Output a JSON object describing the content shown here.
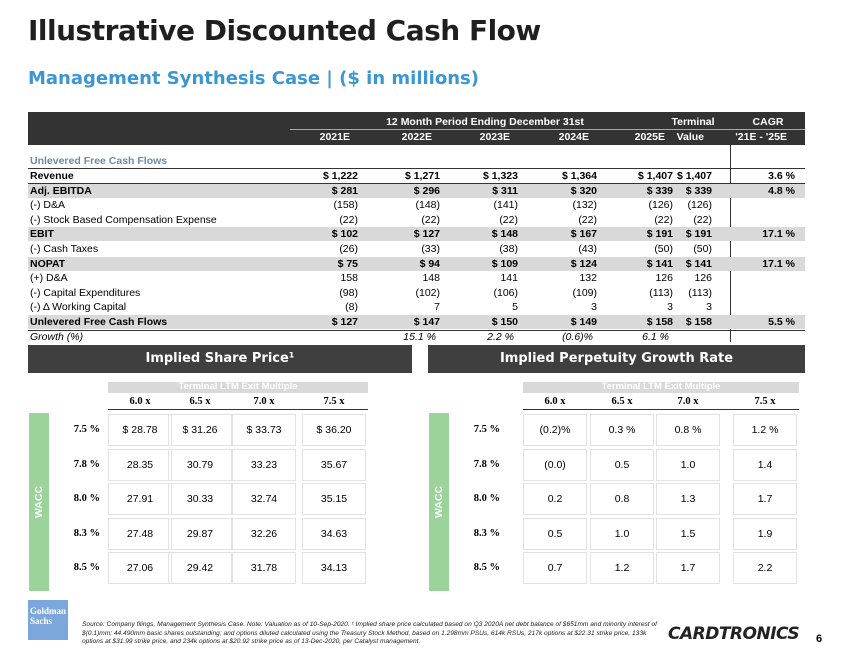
{
  "title": "Illustrative Discounted Cash Flow",
  "subtitle": "Management Synthesis Case | ($ in millions)",
  "dcf": {
    "period_header": "12 Month Period Ending December 31st",
    "terminal_header": "Terminal",
    "cagr_header": "CAGR",
    "columns": [
      "2021E",
      "2022E",
      "2023E",
      "2024E",
      "2025E",
      "Value",
      "'21E - '25E"
    ],
    "section_label": "Unlevered Free Cash Flows",
    "rows": [
      {
        "label": "Revenue",
        "cells": [
          "$ 1,222",
          "$ 1,271",
          "$ 1,323",
          "$ 1,364",
          "$ 1,407",
          "$ 1,407",
          "3.6 %"
        ]
      },
      {
        "label": "Adj. EBITDA",
        "cells": [
          "$ 281",
          "$ 296",
          "$ 311",
          "$ 320",
          "$ 339",
          "$ 339",
          "4.8 %"
        ]
      },
      {
        "label": "(-) D&A",
        "cells": [
          "(158)",
          "(148)",
          "(141)",
          "(132)",
          "(126)",
          "(126)"
        ]
      },
      {
        "label": "(-) Stock Based Compensation Expense",
        "cells": [
          "(22)",
          "(22)",
          "(22)",
          "(22)",
          "(22)",
          "(22)"
        ]
      },
      {
        "label": "EBIT",
        "cells": [
          "$ 102",
          "$ 127",
          "$ 148",
          "$ 167",
          "$ 191",
          "$ 191",
          "17.1 %"
        ]
      },
      {
        "label": "(-) Cash Taxes",
        "cells": [
          "(26)",
          "(33)",
          "(38)",
          "(43)",
          "(50)",
          "(50)"
        ]
      },
      {
        "label": "NOPAT",
        "cells": [
          "$ 75",
          "$ 94",
          "$ 109",
          "$ 124",
          "$ 141",
          "$ 141",
          "17.1 %"
        ]
      },
      {
        "label": "(+) D&A",
        "cells": [
          "158",
          "148",
          "141",
          "132",
          "126",
          "126"
        ]
      },
      {
        "label": "(-) Capital Expenditures",
        "cells": [
          "(98)",
          "(102)",
          "(106)",
          "(109)",
          "(113)",
          "(113)"
        ]
      },
      {
        "label": "(-) Δ Working Capital",
        "cells": [
          "(8)",
          "7",
          "5",
          "3",
          "3",
          "3"
        ]
      },
      {
        "label": "Unlevered Free Cash Flows",
        "cells": [
          "$ 127",
          "$ 147",
          "$ 150",
          "$ 149",
          "$ 158",
          "$ 158",
          "5.5 %"
        ]
      }
    ],
    "growth": {
      "label": "Growth (%)",
      "cells": [
        "15.1 %",
        "2.2 %",
        "(0.6)%",
        "6.1 %"
      ]
    }
  },
  "share_price": {
    "title": "Implied Share Price¹",
    "column_header": "Terminal LTM Exit Multiple",
    "columns": [
      "6.0 x",
      "6.5 x",
      "7.0 x",
      "7.5 x"
    ],
    "row_header": "WACC",
    "rows": [
      {
        "label": "7.5 %",
        "cells": [
          "$ 28.78",
          "$ 31.26",
          "$ 33.73",
          "$ 36.20"
        ]
      },
      {
        "label": "7.8 %",
        "cells": [
          "28.35",
          "30.79",
          "33.23",
          "35.67"
        ]
      },
      {
        "label": "8.0 %",
        "cells": [
          "27.91",
          "30.33",
          "32.74",
          "35.15"
        ]
      },
      {
        "label": "8.3 %",
        "cells": [
          "27.48",
          "29.87",
          "32.26",
          "34.63"
        ]
      },
      {
        "label": "8.5 %",
        "cells": [
          "27.06",
          "29.42",
          "31.78",
          "34.13"
        ]
      }
    ]
  },
  "perpetuity_growth": {
    "title": "Implied Perpetuity Growth Rate",
    "column_header": "Terminal LTM Exit Multiple",
    "columns": [
      "6.0 x",
      "6.5 x",
      "7.0 x",
      "7.5 x"
    ],
    "row_header": "WACC",
    "rows": [
      {
        "label": "7.5 %",
        "cells": [
          "(0.2)%",
          "0.3 %",
          "0.8 %",
          "1.2 %"
        ]
      },
      {
        "label": "7.8 %",
        "cells": [
          "(0.0)",
          "0.5",
          "1.0",
          "1.4"
        ]
      },
      {
        "label": "8.0 %",
        "cells": [
          "0.2",
          "0.8",
          "1.3",
          "1.7"
        ]
      },
      {
        "label": "8.3 %",
        "cells": [
          "0.5",
          "1.0",
          "1.5",
          "1.9"
        ]
      },
      {
        "label": "8.5 %",
        "cells": [
          "0.7",
          "1.2",
          "1.7",
          "2.2"
        ]
      }
    ]
  },
  "footer": {
    "source": "Source: Company filings, Management Synthesis Case. Note: Valuation as of 10-Sep-2020. ¹ Implied share price calculated based on Q3 2020A net debt balance of $651mm and minority interest of $(0.1)mm; 44.490mm basic shares outstanding; and options diluted calculated using the Treasury Stock Method, based on 1.298mm PSUs, 614k RSUs, 217k options at $22.31 strike price, 133k options at $31.99 strike price, and 234k options at $20.92 strike price as of 13-Dec-2020, per Catalyst management.",
    "left_logo": "Goldman Sachs",
    "right_logo": "CARDTRONICS",
    "page_number": "6"
  }
}
